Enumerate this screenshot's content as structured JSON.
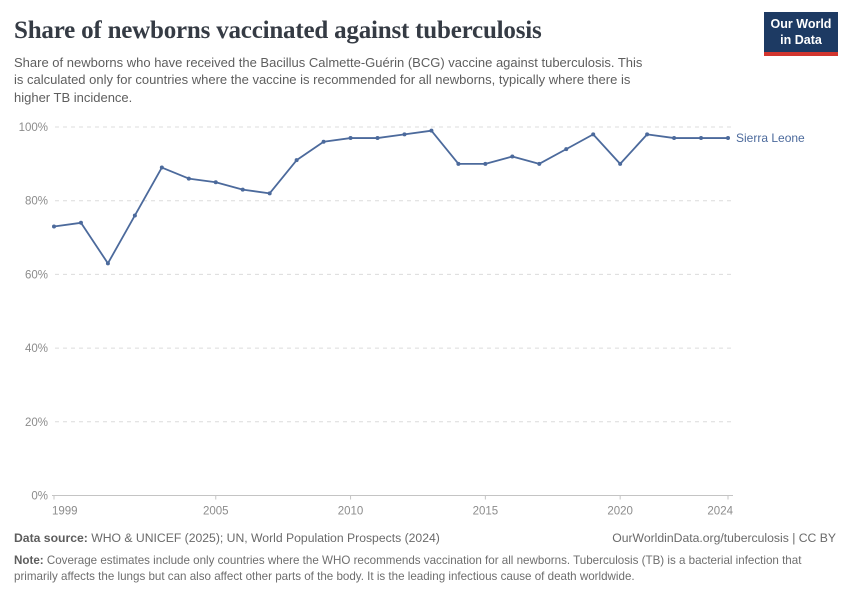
{
  "chart_data": {
    "type": "line",
    "title": "Share of newborns vaccinated against tuberculosis",
    "subtitle_lines": [
      "Share of newborns who have received the Bacillus Calmette-Guérin (BCG) vaccine against tuberculosis. This",
      "is calculated only for countries where the vaccine is recommended for all newborns, typically where there is",
      "higher TB incidence."
    ],
    "x": [
      1999,
      2000,
      2001,
      2002,
      2003,
      2004,
      2005,
      2006,
      2007,
      2008,
      2009,
      2010,
      2011,
      2012,
      2013,
      2014,
      2015,
      2016,
      2017,
      2018,
      2019,
      2020,
      2021,
      2022,
      2023,
      2024
    ],
    "series": [
      {
        "name": "Sierra Leone",
        "values": [
          73,
          74,
          63,
          76,
          89,
          86,
          85,
          83,
          82,
          91,
          96,
          97,
          97,
          98,
          99,
          90,
          90,
          92,
          90,
          94,
          98,
          90,
          98,
          97,
          97,
          97
        ]
      }
    ],
    "ylim": [
      0,
      100
    ],
    "yticks": [
      0,
      20,
      40,
      60,
      80,
      100
    ],
    "ytick_labels": [
      "0%",
      "20%",
      "40%",
      "60%",
      "80%",
      "100%"
    ],
    "xticks": [
      1999,
      2005,
      2010,
      2015,
      2020,
      2024
    ],
    "grid": "horizontal dashed gridlines, no vertical grid",
    "legend_position": "label at end of line, right of last point",
    "markers": "small round dots on every data point"
  },
  "logo": {
    "line1": "Our World",
    "line2": "in Data"
  },
  "footer": {
    "data_source_label": "Data source:",
    "data_source_text": " WHO & UNICEF (2025); UN, World Population Prospects (2024)",
    "link_text": "OurWorldinData.org/tuberculosis | CC BY",
    "note_label": "Note:",
    "note_text": " Coverage estimates include only countries where the WHO recommends vaccination for all newborns. Tuberculosis (TB) is a bacterial infection that primarily affects the lungs but can also affect other parts of the body. It is the leading infectious cause of death worldwide."
  },
  "colors": {
    "line": "#4C6A9C",
    "title_text": "#353b44",
    "subtitle_text": "#5e5e5e",
    "tick_text": "#8c8c8c",
    "gridline": "#dcdcdc",
    "axis": "#c4c4c4",
    "logo_bg": "#1d3a63",
    "logo_stripe": "#d2352e"
  }
}
